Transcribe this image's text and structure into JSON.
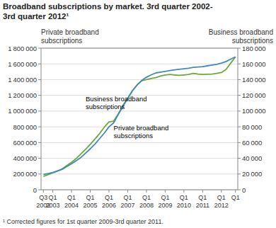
{
  "chart_data": {
    "type": "line",
    "title": "Broadband subscriptions by market. 3rd quarter 2002-\n3rd quarter 2012¹",
    "y_label": "Private broadband\nsubscriptions",
    "y2_label": "Business broadband\nsubscriptions",
    "footnote": "¹ Corrected figures for 1st quarter 2009-3rd quarter 2011.",
    "categories": [
      "Q3\n2002",
      null,
      "Q1\n2003",
      null,
      null,
      null,
      "Q1\n2004",
      null,
      null,
      null,
      "Q1\n2005",
      null,
      null,
      null,
      "Q1\n2006",
      null,
      null,
      null,
      "Q1\n2007",
      null,
      null,
      null,
      "Q1\n2008",
      null,
      null,
      null,
      "Q1\n2009",
      null,
      null,
      null,
      "Q1\n2010",
      null,
      null,
      null,
      "Q1\n2011",
      null,
      null,
      null,
      "Q1\n2012",
      null,
      null,
      "Q1"
    ],
    "series": [
      {
        "color": "#6aaa3a",
        "axis": "y",
        "values": [
          170000,
          192000,
          215000,
          238000,
          265000,
          308000,
          348000,
          398000,
          455000,
          515000,
          578000,
          645000,
          715000,
          795000,
          862000,
          872000,
          965000,
          1075000,
          1165000,
          1255000,
          1335000,
          1385000,
          1400000,
          1415000,
          1425000,
          1445000,
          1460000,
          1465000,
          1460000,
          1455000,
          1460000,
          1465000,
          1480000,
          1470000,
          1465000,
          1468000,
          1470000,
          1480000,
          1490000,
          1530000,
          1610000,
          1690000
        ]
      },
      {
        "color": "#4488bb",
        "axis": "y2",
        "values": [
          19500,
          20500,
          22000,
          24000,
          26000,
          29500,
          33000,
          37000,
          41000,
          46500,
          52000,
          58000,
          65000,
          72000,
          80000,
          85000,
          96000,
          106000,
          116000,
          126000,
          133000,
          139000,
          143000,
          146000,
          148500,
          149500,
          150500,
          151500,
          152500,
          153200,
          153800,
          154500,
          155500,
          156000,
          156500,
          157500,
          158500,
          159500,
          161000,
          163000,
          166000,
          169000
        ]
      }
    ],
    "annotations": [
      {
        "text": "Business broadband\nsubscriptions",
        "x": 9,
        "y": 1010000
      },
      {
        "text": "Private broadband\nsubscriptions",
        "x": 15,
        "y": 640000
      }
    ],
    "ylim": [
      0,
      1800000
    ],
    "yticks": [
      0,
      {
        "value": 200000,
        "label": "200 000"
      },
      {
        "value": 400000,
        "label": "400 000"
      },
      {
        "value": 600000,
        "label": "600 000"
      },
      {
        "value": 800000,
        "label": "800 000"
      },
      {
        "value": 1000000,
        "label": "1 000 000"
      },
      {
        "value": 1200000,
        "label": "1 200 000"
      },
      {
        "value": 1400000,
        "label": "1 400 000"
      },
      {
        "value": 1600000,
        "label": "1 600 000"
      },
      {
        "value": 1800000,
        "label": "1 800 000"
      }
    ],
    "y2lim": [
      0,
      180000
    ],
    "y2ticks": [
      0,
      {
        "value": 20000,
        "label": "20 000"
      },
      {
        "value": 40000,
        "label": "40 000"
      },
      {
        "value": 60000,
        "label": "60 000"
      },
      {
        "value": 80000,
        "label": "80 000"
      },
      {
        "value": 100000,
        "label": "100 000"
      },
      {
        "value": 120000,
        "label": "120 000"
      },
      {
        "value": 140000,
        "label": "140 000"
      },
      {
        "value": 160000,
        "label": "160 000"
      },
      {
        "value": 180000,
        "label": "180 000"
      }
    ],
    "grid": true
  }
}
